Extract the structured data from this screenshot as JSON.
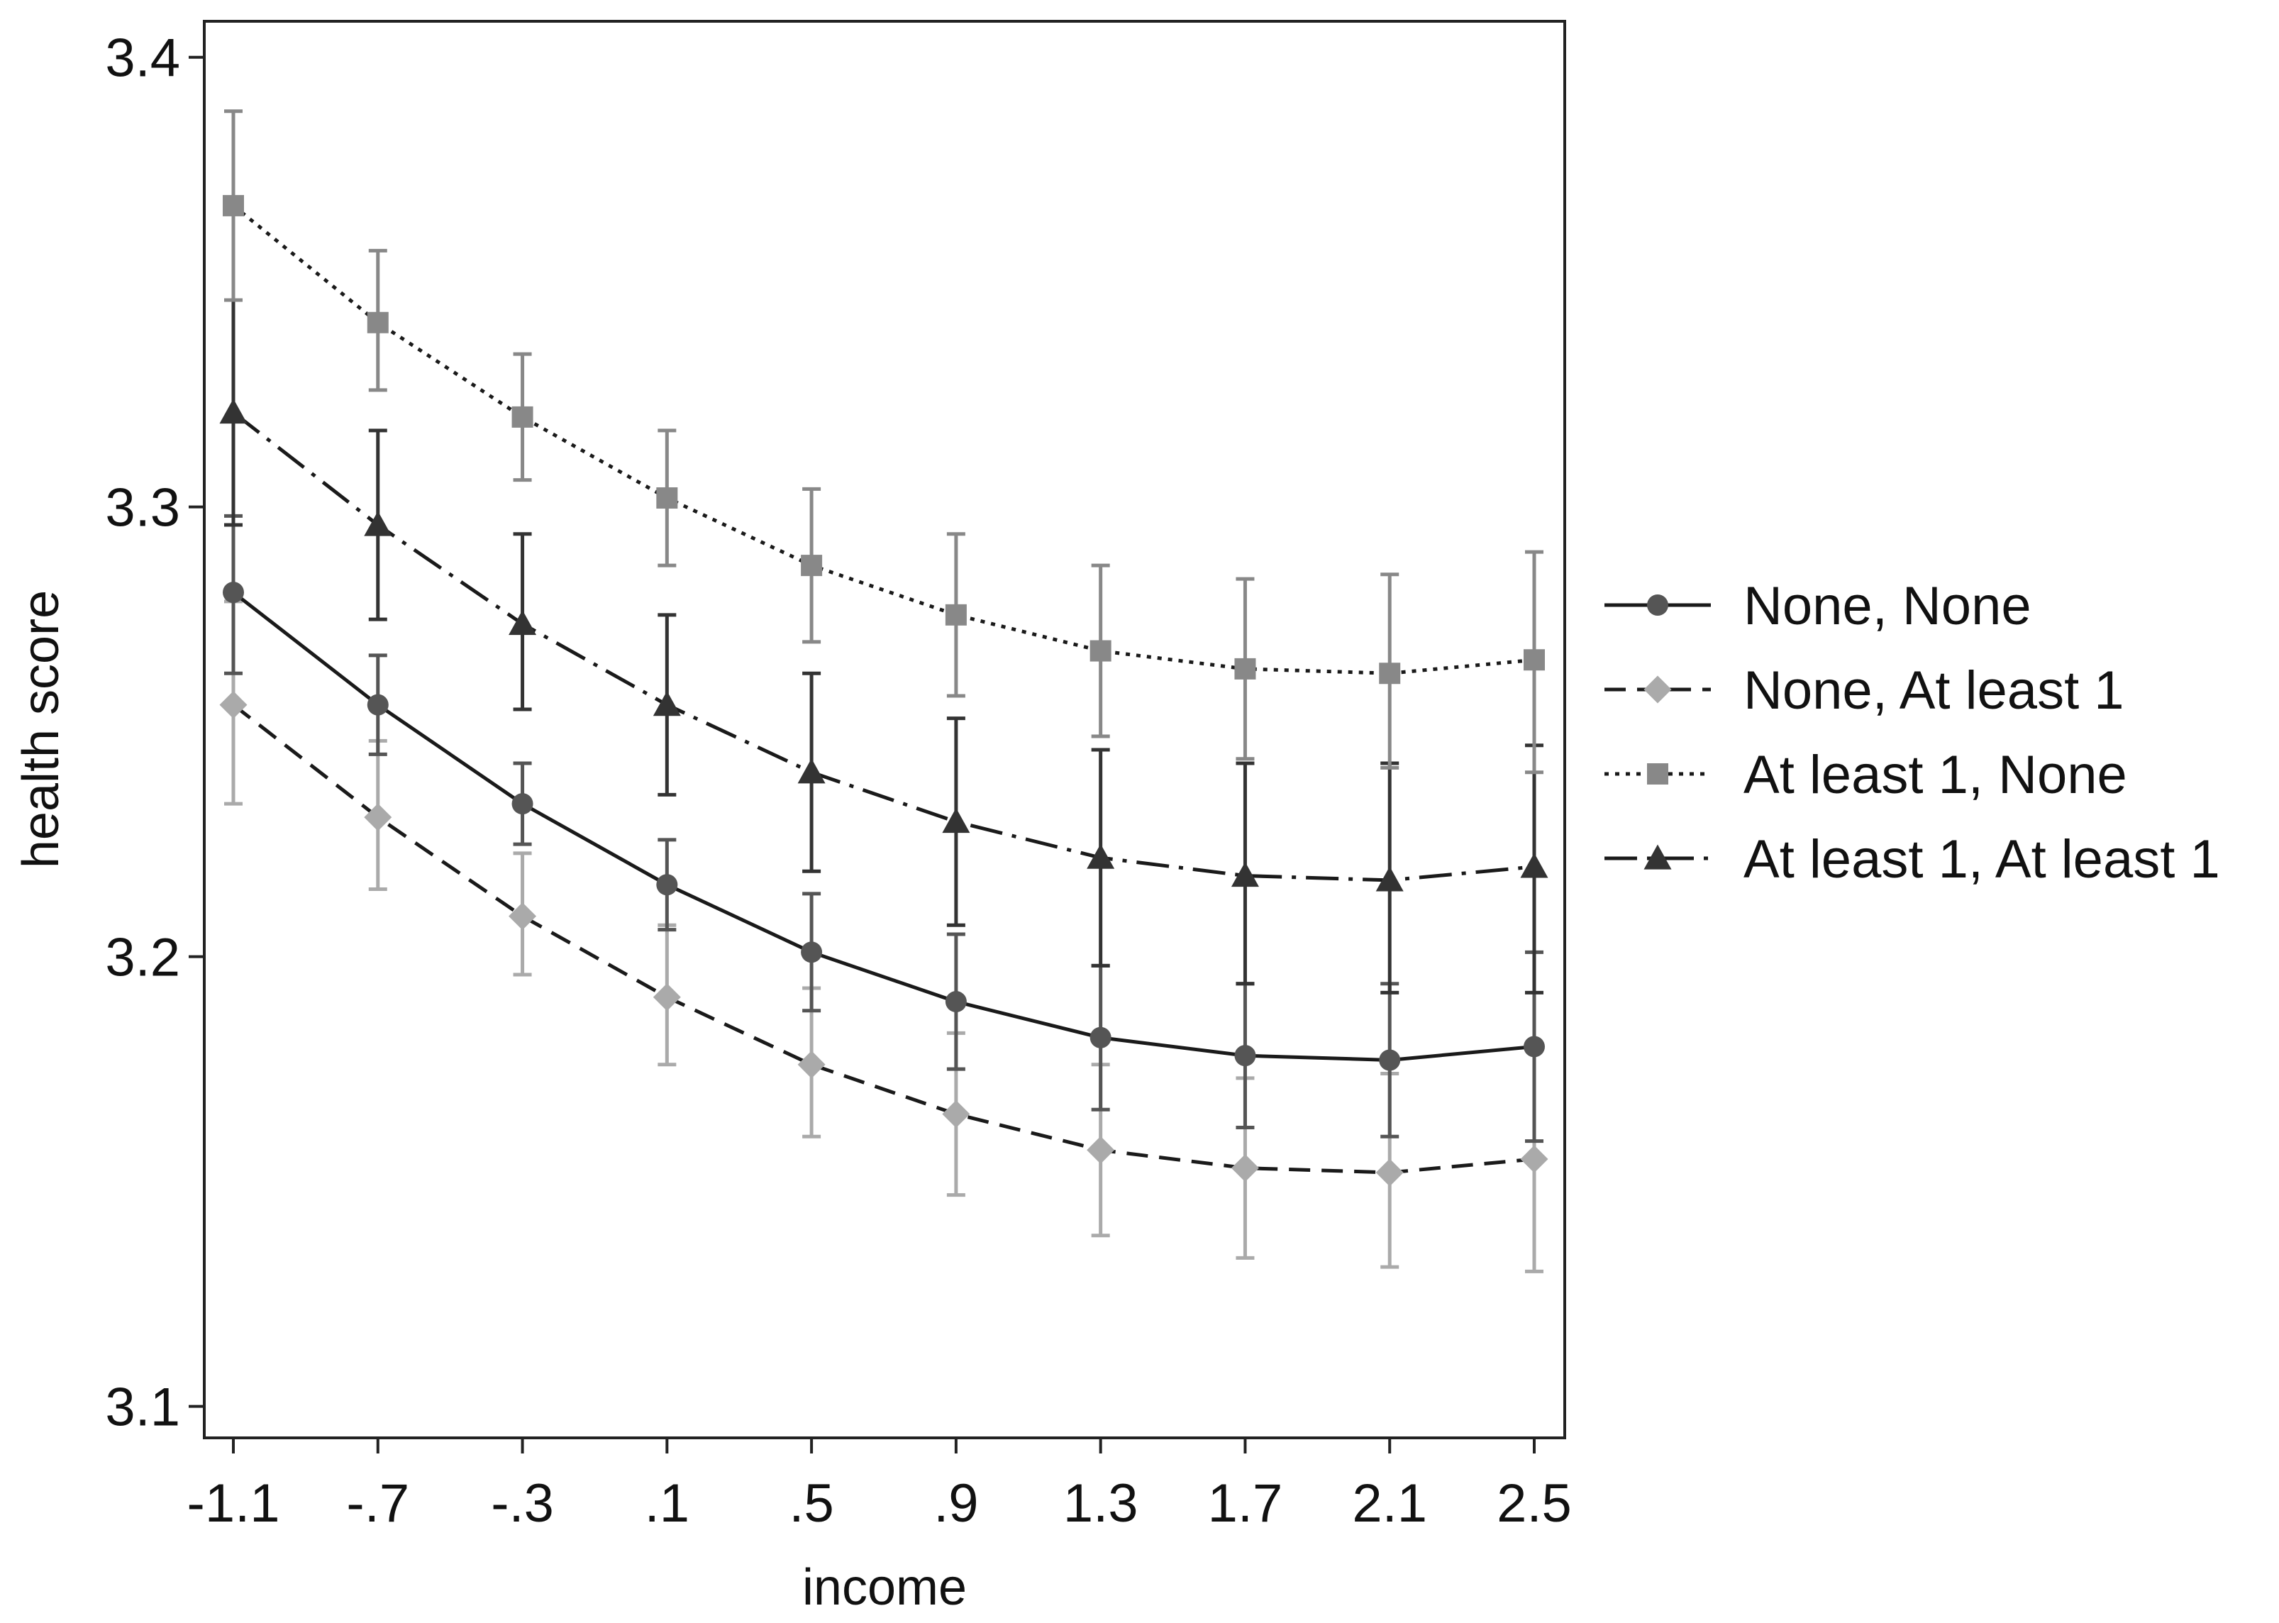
{
  "chart_data": {
    "type": "line",
    "title": "",
    "xlabel": "income",
    "ylabel": "health score",
    "x": [
      -1.1,
      -0.7,
      -0.3,
      0.1,
      0.5,
      0.9,
      1.3,
      1.7,
      2.1,
      2.5
    ],
    "x_tick_labels": [
      "-1.1",
      "-.7",
      "-.3",
      ".1",
      ".5",
      ".9",
      "1.3",
      "1.7",
      "2.1",
      "2.5"
    ],
    "ylim": [
      3.093,
      3.408
    ],
    "y_ticks": [
      3.1,
      3.2,
      3.3,
      3.4
    ],
    "y_tick_labels": [
      "3.1",
      "3.2",
      "3.3",
      "3.4"
    ],
    "grid": false,
    "legend_position": "right",
    "series": [
      {
        "name": "None, None",
        "color": "#555555",
        "marker": "circle",
        "line_style": "solid",
        "values": [
          3.281,
          3.256,
          3.234,
          3.216,
          3.201,
          3.19,
          3.182,
          3.178,
          3.177,
          3.18
        ],
        "lower": [
          3.263,
          3.245,
          3.225,
          3.206,
          3.188,
          3.175,
          3.166,
          3.162,
          3.16,
          3.159
        ],
        "upper": [
          3.298,
          3.267,
          3.243,
          3.226,
          3.214,
          3.205,
          3.198,
          3.194,
          3.194,
          3.201
        ]
      },
      {
        "name": "None, At least 1",
        "color": "#aaaaaa",
        "marker": "diamond",
        "line_style": "dashed",
        "values": [
          3.256,
          3.231,
          3.209,
          3.191,
          3.176,
          3.165,
          3.157,
          3.153,
          3.152,
          3.155
        ],
        "lower": [
          3.234,
          3.215,
          3.196,
          3.176,
          3.16,
          3.147,
          3.138,
          3.133,
          3.131,
          3.13
        ],
        "upper": [
          3.279,
          3.248,
          3.223,
          3.207,
          3.193,
          3.183,
          3.176,
          3.173,
          3.174,
          3.18
        ]
      },
      {
        "name": "At least 1, None",
        "color": "#888888",
        "marker": "square",
        "line_style": "dotted",
        "values": [
          3.367,
          3.341,
          3.32,
          3.302,
          3.287,
          3.276,
          3.268,
          3.264,
          3.263,
          3.266
        ],
        "lower": [
          3.346,
          3.326,
          3.306,
          3.287,
          3.27,
          3.258,
          3.249,
          3.244,
          3.242,
          3.241
        ],
        "upper": [
          3.388,
          3.357,
          3.334,
          3.317,
          3.304,
          3.294,
          3.287,
          3.284,
          3.285,
          3.29
        ]
      },
      {
        "name": "At least 1, At least 1",
        "color": "#333333",
        "marker": "triangle",
        "line_style": "dashdot",
        "values": [
          3.321,
          3.296,
          3.274,
          3.256,
          3.241,
          3.23,
          3.222,
          3.218,
          3.217,
          3.22
        ],
        "lower": [
          3.296,
          3.275,
          3.255,
          3.236,
          3.219,
          3.207,
          3.198,
          3.194,
          3.192,
          3.192
        ],
        "upper": [
          3.346,
          3.317,
          3.294,
          3.276,
          3.263,
          3.253,
          3.246,
          3.243,
          3.243,
          3.247
        ]
      }
    ]
  }
}
